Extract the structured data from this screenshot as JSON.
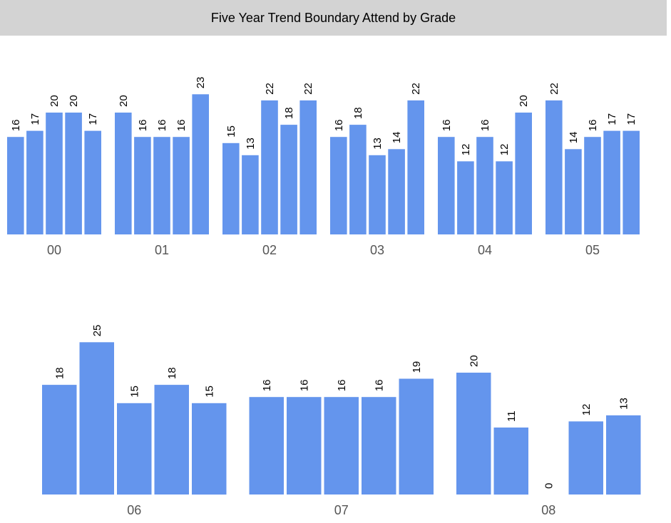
{
  "chart_data": {
    "type": "bar",
    "title": "Five Year Trend Boundary Attend by Grade",
    "bar_color": "#6495ed",
    "title_bar_color": "#d3d3d3",
    "groups": [
      {
        "label": "00",
        "values": [
          16,
          17,
          20,
          20,
          17
        ]
      },
      {
        "label": "01",
        "values": [
          20,
          16,
          16,
          16,
          23
        ]
      },
      {
        "label": "02",
        "values": [
          15,
          13,
          22,
          18,
          22
        ]
      },
      {
        "label": "03",
        "values": [
          16,
          18,
          13,
          14,
          22
        ]
      },
      {
        "label": "04",
        "values": [
          16,
          12,
          16,
          12,
          20
        ]
      },
      {
        "label": "05",
        "values": [
          22,
          14,
          16,
          17,
          17
        ]
      },
      {
        "label": "06",
        "values": [
          18,
          25,
          15,
          18,
          15
        ]
      },
      {
        "label": "07",
        "values": [
          16,
          16,
          16,
          16,
          19
        ]
      },
      {
        "label": "08",
        "values": [
          20,
          11,
          0,
          12,
          13
        ]
      }
    ]
  }
}
